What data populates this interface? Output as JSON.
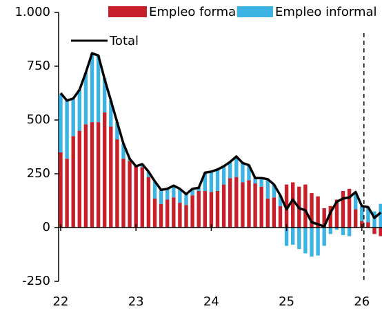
{
  "chart_data": {
    "type": "bar",
    "categories": [
      "22",
      null,
      null,
      null,
      null,
      null,
      null,
      null,
      null,
      null,
      null,
      null,
      "23",
      null,
      null,
      null,
      null,
      null,
      null,
      null,
      null,
      null,
      null,
      null,
      "24",
      null,
      null,
      null,
      null,
      null,
      null,
      null,
      null,
      null,
      null,
      null,
      "25",
      null,
      null,
      null,
      null,
      null,
      null,
      null,
      null,
      null,
      null,
      null,
      "26",
      null,
      null,
      null
    ],
    "series": [
      {
        "name": "Empleo formal",
        "type": "bar",
        "color": "#c8202a",
        "values": [
          350,
          320,
          425,
          450,
          480,
          490,
          490,
          535,
          470,
          410,
          320,
          310,
          285,
          280,
          235,
          135,
          110,
          130,
          140,
          115,
          105,
          150,
          170,
          170,
          165,
          170,
          200,
          230,
          235,
          210,
          220,
          205,
          190,
          135,
          140,
          100,
          200,
          210,
          190,
          200,
          160,
          145,
          90,
          100,
          130,
          170,
          180,
          85,
          30,
          25,
          -30,
          -40
        ]
      },
      {
        "name": "Empleo informal",
        "type": "bar",
        "color": "#3db3e3",
        "values": [
          270,
          270,
          175,
          190,
          240,
          320,
          310,
          160,
          120,
          80,
          70,
          10,
          0,
          15,
          25,
          80,
          65,
          50,
          55,
          65,
          50,
          30,
          15,
          85,
          95,
          100,
          85,
          75,
          95,
          90,
          70,
          25,
          40,
          90,
          60,
          50,
          -85,
          -80,
          -100,
          -120,
          -135,
          -130,
          -85,
          -30,
          -10,
          -35,
          -40,
          80,
          70,
          70,
          75,
          110
        ]
      },
      {
        "name": "Total",
        "type": "line",
        "color": "#000000",
        "values": [
          625,
          590,
          600,
          640,
          720,
          810,
          800,
          690,
          590,
          490,
          390,
          320,
          285,
          295,
          260,
          215,
          175,
          180,
          195,
          180,
          155,
          180,
          185,
          255,
          260,
          270,
          285,
          305,
          330,
          300,
          290,
          230,
          230,
          225,
          200,
          150,
          85,
          130,
          90,
          80,
          25,
          15,
          5,
          70,
          120,
          135,
          140,
          165,
          100,
          95,
          45,
          70
        ]
      }
    ],
    "ylim": [
      -250,
      1000
    ],
    "yticks": [
      {
        "value": -250,
        "label": "-250"
      },
      0,
      250,
      500,
      750,
      {
        "value": 1000,
        "label": "1.000"
      }
    ]
  }
}
